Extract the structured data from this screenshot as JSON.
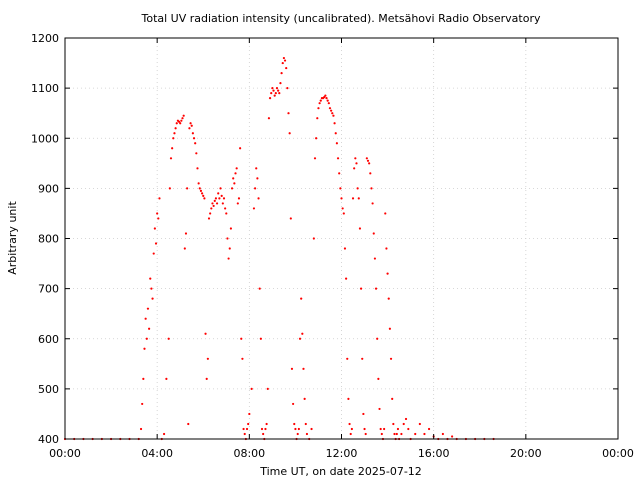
{
  "chart_data": {
    "type": "scatter",
    "title": "Total UV radiation intensity (uncalibrated). Metsähovi Radio Observatory",
    "xlabel": "Time UT, on date 2025-07-12",
    "ylabel": "Arbitrary unit",
    "xlim": [
      0,
      24
    ],
    "ylim": [
      400,
      1200
    ],
    "x_unit": "hours UT",
    "xticks": [
      {
        "v": 0,
        "label": "00:00"
      },
      {
        "v": 4,
        "label": "04:00"
      },
      {
        "v": 8,
        "label": "08:00"
      },
      {
        "v": 12,
        "label": "12:00"
      },
      {
        "v": 16,
        "label": "16:00"
      },
      {
        "v": 20,
        "label": "20:00"
      },
      {
        "v": 24,
        "label": "00:00"
      }
    ],
    "yticks": [
      400,
      500,
      600,
      700,
      800,
      900,
      1000,
      1100,
      1200
    ],
    "grid": true,
    "marker_color": "#ff0000",
    "series": [
      {
        "points": [
          [
            0.0,
            400
          ],
          [
            0.4,
            400
          ],
          [
            0.8,
            400
          ],
          [
            1.2,
            400
          ],
          [
            1.6,
            400
          ],
          [
            2.0,
            400
          ],
          [
            2.4,
            400
          ],
          [
            2.8,
            400
          ],
          [
            3.2,
            400
          ],
          [
            3.3,
            420
          ],
          [
            3.35,
            470
          ],
          [
            3.4,
            520
          ],
          [
            3.45,
            580
          ],
          [
            3.5,
            640
          ],
          [
            3.55,
            600
          ],
          [
            3.6,
            660
          ],
          [
            3.65,
            620
          ],
          [
            3.7,
            720
          ],
          [
            3.75,
            700
          ],
          [
            3.8,
            680
          ],
          [
            3.85,
            770
          ],
          [
            3.9,
            820
          ],
          [
            3.95,
            790
          ],
          [
            4.0,
            850
          ],
          [
            4.05,
            840
          ],
          [
            4.1,
            880
          ],
          [
            4.2,
            400
          ],
          [
            4.3,
            410
          ],
          [
            4.4,
            520
          ],
          [
            4.5,
            600
          ],
          [
            4.55,
            900
          ],
          [
            4.6,
            960
          ],
          [
            4.65,
            980
          ],
          [
            4.7,
            1000
          ],
          [
            4.75,
            1010
          ],
          [
            4.8,
            1020
          ],
          [
            4.85,
            1030
          ],
          [
            4.9,
            1035
          ],
          [
            4.95,
            1033
          ],
          [
            5.0,
            1030
          ],
          [
            5.05,
            1035
          ],
          [
            5.1,
            1040
          ],
          [
            5.15,
            1045
          ],
          [
            5.2,
            780
          ],
          [
            5.25,
            810
          ],
          [
            5.3,
            900
          ],
          [
            5.35,
            430
          ],
          [
            5.4,
            1020
          ],
          [
            5.45,
            1030
          ],
          [
            5.5,
            1025
          ],
          [
            5.55,
            1010
          ],
          [
            5.6,
            1000
          ],
          [
            5.65,
            990
          ],
          [
            5.7,
            970
          ],
          [
            5.75,
            940
          ],
          [
            5.8,
            910
          ],
          [
            5.85,
            900
          ],
          [
            5.9,
            895
          ],
          [
            5.95,
            890
          ],
          [
            6.0,
            885
          ],
          [
            6.05,
            880
          ],
          [
            6.1,
            610
          ],
          [
            6.15,
            520
          ],
          [
            6.2,
            560
          ],
          [
            6.25,
            840
          ],
          [
            6.3,
            850
          ],
          [
            6.35,
            860
          ],
          [
            6.4,
            870
          ],
          [
            6.45,
            865
          ],
          [
            6.5,
            875
          ],
          [
            6.55,
            880
          ],
          [
            6.6,
            870
          ],
          [
            6.65,
            890
          ],
          [
            6.7,
            880
          ],
          [
            6.75,
            900
          ],
          [
            6.8,
            885
          ],
          [
            6.85,
            870
          ],
          [
            6.9,
            880
          ],
          [
            6.95,
            860
          ],
          [
            7.0,
            850
          ],
          [
            7.05,
            800
          ],
          [
            7.1,
            760
          ],
          [
            7.15,
            780
          ],
          [
            7.2,
            820
          ],
          [
            7.25,
            900
          ],
          [
            7.3,
            920
          ],
          [
            7.35,
            910
          ],
          [
            7.4,
            930
          ],
          [
            7.45,
            940
          ],
          [
            7.5,
            870
          ],
          [
            7.55,
            880
          ],
          [
            7.6,
            980
          ],
          [
            7.65,
            600
          ],
          [
            7.7,
            560
          ],
          [
            7.75,
            420
          ],
          [
            7.8,
            410
          ],
          [
            7.85,
            400
          ],
          [
            7.9,
            420
          ],
          [
            7.95,
            430
          ],
          [
            8.0,
            450
          ],
          [
            8.1,
            500
          ],
          [
            8.2,
            860
          ],
          [
            8.25,
            900
          ],
          [
            8.3,
            940
          ],
          [
            8.35,
            920
          ],
          [
            8.4,
            880
          ],
          [
            8.45,
            700
          ],
          [
            8.5,
            600
          ],
          [
            8.55,
            420
          ],
          [
            8.6,
            410
          ],
          [
            8.65,
            400
          ],
          [
            8.7,
            420
          ],
          [
            8.75,
            430
          ],
          [
            8.8,
            500
          ],
          [
            8.85,
            1040
          ],
          [
            8.9,
            1080
          ],
          [
            8.95,
            1090
          ],
          [
            9.0,
            1100
          ],
          [
            9.05,
            1095
          ],
          [
            9.1,
            1085
          ],
          [
            9.15,
            1090
          ],
          [
            9.2,
            1100
          ],
          [
            9.25,
            1095
          ],
          [
            9.3,
            1090
          ],
          [
            9.35,
            1110
          ],
          [
            9.4,
            1130
          ],
          [
            9.45,
            1150
          ],
          [
            9.5,
            1160
          ],
          [
            9.55,
            1155
          ],
          [
            9.6,
            1140
          ],
          [
            9.65,
            1100
          ],
          [
            9.7,
            1050
          ],
          [
            9.75,
            1010
          ],
          [
            9.8,
            840
          ],
          [
            9.85,
            540
          ],
          [
            9.9,
            470
          ],
          [
            9.95,
            430
          ],
          [
            10.0,
            420
          ],
          [
            10.05,
            400
          ],
          [
            10.1,
            410
          ],
          [
            10.15,
            420
          ],
          [
            10.2,
            600
          ],
          [
            10.25,
            680
          ],
          [
            10.3,
            610
          ],
          [
            10.35,
            540
          ],
          [
            10.4,
            480
          ],
          [
            10.45,
            430
          ],
          [
            10.5,
            410
          ],
          [
            10.6,
            400
          ],
          [
            10.7,
            420
          ],
          [
            10.8,
            800
          ],
          [
            10.85,
            960
          ],
          [
            10.9,
            1000
          ],
          [
            10.95,
            1040
          ],
          [
            11.0,
            1060
          ],
          [
            11.05,
            1070
          ],
          [
            11.1,
            1075
          ],
          [
            11.15,
            1080
          ],
          [
            11.2,
            1080
          ],
          [
            11.25,
            1082
          ],
          [
            11.3,
            1085
          ],
          [
            11.35,
            1080
          ],
          [
            11.4,
            1075
          ],
          [
            11.45,
            1070
          ],
          [
            11.5,
            1060
          ],
          [
            11.55,
            1055
          ],
          [
            11.6,
            1050
          ],
          [
            11.65,
            1045
          ],
          [
            11.7,
            1030
          ],
          [
            11.75,
            1010
          ],
          [
            11.8,
            990
          ],
          [
            11.85,
            960
          ],
          [
            11.9,
            930
          ],
          [
            11.95,
            900
          ],
          [
            12.0,
            880
          ],
          [
            12.05,
            860
          ],
          [
            12.1,
            850
          ],
          [
            12.15,
            780
          ],
          [
            12.2,
            720
          ],
          [
            12.25,
            560
          ],
          [
            12.3,
            480
          ],
          [
            12.35,
            430
          ],
          [
            12.4,
            410
          ],
          [
            12.45,
            420
          ],
          [
            12.5,
            880
          ],
          [
            12.55,
            940
          ],
          [
            12.6,
            960
          ],
          [
            12.65,
            950
          ],
          [
            12.7,
            900
          ],
          [
            12.75,
            880
          ],
          [
            12.8,
            820
          ],
          [
            12.85,
            700
          ],
          [
            12.9,
            560
          ],
          [
            12.95,
            450
          ],
          [
            13.0,
            420
          ],
          [
            13.05,
            410
          ],
          [
            13.1,
            960
          ],
          [
            13.15,
            955
          ],
          [
            13.2,
            950
          ],
          [
            13.25,
            930
          ],
          [
            13.3,
            900
          ],
          [
            13.35,
            870
          ],
          [
            13.4,
            810
          ],
          [
            13.45,
            760
          ],
          [
            13.5,
            700
          ],
          [
            13.55,
            600
          ],
          [
            13.6,
            520
          ],
          [
            13.65,
            460
          ],
          [
            13.7,
            420
          ],
          [
            13.75,
            410
          ],
          [
            13.8,
            400
          ],
          [
            13.85,
            420
          ],
          [
            13.9,
            850
          ],
          [
            13.95,
            780
          ],
          [
            14.0,
            730
          ],
          [
            14.05,
            680
          ],
          [
            14.1,
            620
          ],
          [
            14.15,
            560
          ],
          [
            14.2,
            480
          ],
          [
            14.25,
            430
          ],
          [
            14.3,
            410
          ],
          [
            14.35,
            400
          ],
          [
            14.4,
            410
          ],
          [
            14.45,
            420
          ],
          [
            14.5,
            400
          ],
          [
            14.6,
            410
          ],
          [
            14.7,
            430
          ],
          [
            14.8,
            440
          ],
          [
            14.9,
            420
          ],
          [
            15.0,
            400
          ],
          [
            15.2,
            410
          ],
          [
            15.4,
            430
          ],
          [
            15.6,
            410
          ],
          [
            15.8,
            420
          ],
          [
            16.0,
            405
          ],
          [
            16.2,
            400
          ],
          [
            16.4,
            410
          ],
          [
            16.6,
            400
          ],
          [
            16.8,
            405
          ],
          [
            17.0,
            400
          ],
          [
            17.4,
            400
          ],
          [
            17.8,
            400
          ],
          [
            18.2,
            400
          ],
          [
            18.6,
            400
          ]
        ]
      }
    ]
  }
}
